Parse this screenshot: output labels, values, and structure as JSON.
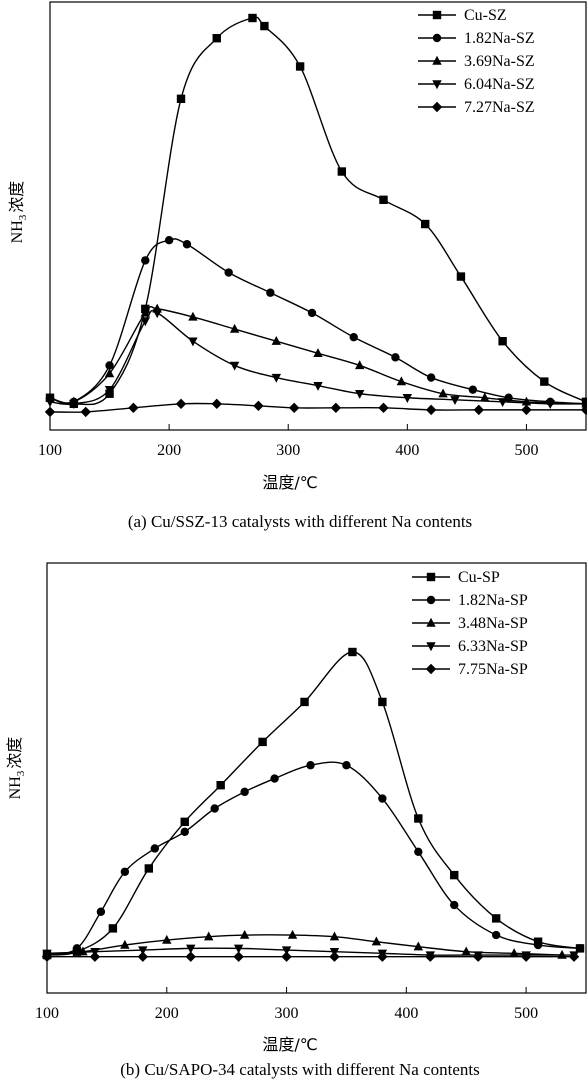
{
  "chart_data": [
    {
      "type": "line",
      "caption": "(a) Cu/SSZ-13 catalysts with different Na contents",
      "xlabel": "温度/℃",
      "ylabel_main": "NH",
      "ylabel_sub": "3",
      "ylabel_tail": "浓度",
      "xlim": [
        100,
        550
      ],
      "ylim": [
        0,
        100
      ],
      "xticks": [
        100,
        200,
        300,
        400,
        500
      ],
      "xtick_labels": [
        "100",
        "200",
        "300",
        "400",
        "500"
      ],
      "legend_position": "top-right",
      "series": [
        {
          "name": "Cu-SZ",
          "marker": "square",
          "x": [
            100,
            120,
            150,
            180,
            210,
            240,
            270,
            280,
            310,
            345,
            380,
            415,
            445,
            480,
            515,
            550
          ],
          "y": [
            6,
            4.5,
            7,
            28,
            80,
            95,
            100,
            98,
            88,
            62,
            55,
            49,
            36,
            20,
            10,
            5
          ]
        },
        {
          "name": "1.82Na-SZ",
          "marker": "circle",
          "x": [
            100,
            120,
            150,
            180,
            200,
            215,
            250,
            285,
            320,
            355,
            390,
            420,
            455,
            485,
            520,
            550
          ],
          "y": [
            6,
            5,
            14,
            40,
            45,
            44,
            37,
            32,
            27,
            21,
            16,
            11,
            8,
            6,
            5,
            4.5
          ]
        },
        {
          "name": "3.69Na-SZ",
          "marker": "triangle-up",
          "x": [
            100,
            120,
            150,
            180,
            190,
            220,
            255,
            290,
            325,
            360,
            395,
            430,
            465,
            500,
            550
          ],
          "y": [
            6,
            5,
            12,
            27,
            28,
            26,
            23,
            20,
            17,
            14,
            10,
            7,
            6,
            5,
            4.5
          ]
        },
        {
          "name": "6.04Na-SZ",
          "marker": "triangle-down",
          "x": [
            100,
            120,
            150,
            180,
            190,
            220,
            255,
            290,
            325,
            360,
            400,
            440,
            480,
            520,
            550
          ],
          "y": [
            5,
            4.5,
            8,
            25,
            27,
            20,
            14,
            11,
            9,
            7,
            6,
            5.5,
            5,
            4.5,
            4.5
          ]
        },
        {
          "name": "7.27Na-SZ",
          "marker": "diamond",
          "x": [
            100,
            130,
            170,
            210,
            240,
            275,
            305,
            340,
            380,
            420,
            460,
            500,
            550
          ],
          "y": [
            2.5,
            2.5,
            3.5,
            4.5,
            4.5,
            4,
            3.5,
            3.5,
            3.5,
            3,
            3,
            3,
            3
          ]
        }
      ]
    },
    {
      "type": "line",
      "caption": "(b) Cu/SAPO-34 catalysts with different Na contents",
      "xlabel": "温度/℃",
      "ylabel_main": "NH",
      "ylabel_sub": "3",
      "ylabel_tail": "浓度",
      "xlim": [
        100,
        550
      ],
      "ylim": [
        0,
        100
      ],
      "xticks": [
        100,
        200,
        300,
        400,
        500
      ],
      "xtick_labels": [
        "100",
        "200",
        "300",
        "400",
        "500"
      ],
      "legend_position": "top-right",
      "series": [
        {
          "name": "Cu-SP",
          "marker": "square",
          "x": [
            100,
            125,
            155,
            185,
            215,
            245,
            280,
            315,
            355,
            380,
            410,
            440,
            475,
            510,
            545
          ],
          "y": [
            9,
            10,
            17,
            35,
            49,
            60,
            73,
            85,
            100,
            85,
            50,
            33,
            20,
            13,
            11
          ]
        },
        {
          "name": "1.82Na-SP",
          "marker": "circle",
          "x": [
            100,
            125,
            145,
            165,
            190,
            215,
            240,
            265,
            290,
            320,
            350,
            380,
            410,
            440,
            475,
            510,
            545
          ],
          "y": [
            9,
            11,
            22,
            34,
            41,
            46,
            53,
            58,
            62,
            66,
            66,
            56,
            40,
            24,
            15,
            12,
            11
          ]
        },
        {
          "name": "3.48Na-SP",
          "marker": "triangle-up",
          "x": [
            100,
            130,
            165,
            200,
            235,
            265,
            305,
            340,
            375,
            410,
            450,
            490,
            530
          ],
          "y": [
            9,
            10,
            12,
            13.5,
            14.5,
            15,
            15,
            14.5,
            13,
            11.5,
            10,
            9.5,
            9
          ]
        },
        {
          "name": "6.33Na-SP",
          "marker": "triangle-down",
          "x": [
            100,
            140,
            180,
            220,
            260,
            300,
            340,
            380,
            420,
            460,
            500,
            540
          ],
          "y": [
            9.5,
            10,
            10.5,
            11,
            11,
            10.5,
            10,
            9.5,
            9,
            9,
            9,
            9
          ]
        },
        {
          "name": "7.75Na-SP",
          "marker": "diamond",
          "x": [
            100,
            140,
            180,
            220,
            260,
            300,
            340,
            380,
            420,
            460,
            500,
            540
          ],
          "y": [
            8.5,
            8.5,
            8.5,
            8.5,
            8.5,
            8.5,
            8.5,
            8.5,
            8.5,
            8.5,
            8.5,
            8.5
          ]
        }
      ]
    }
  ]
}
